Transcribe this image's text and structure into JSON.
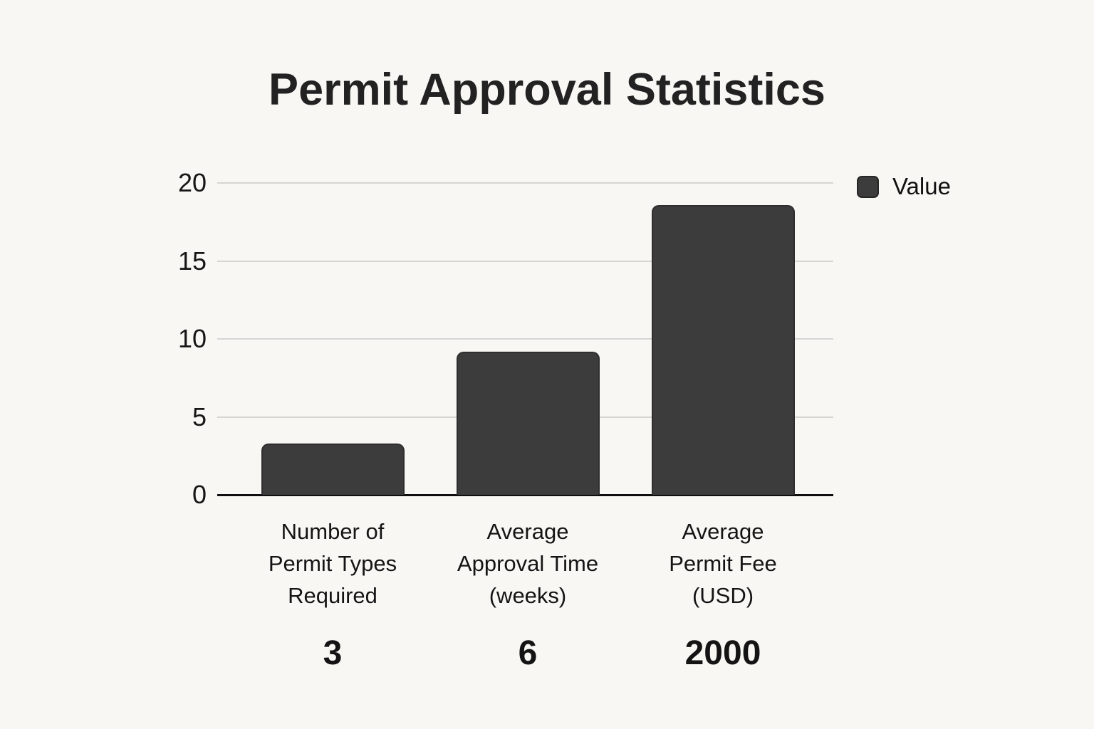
{
  "page": {
    "background_color": "#f8f7f4"
  },
  "chart_data": {
    "type": "bar",
    "title": "Permit Approval Statistics",
    "series_name": "Value",
    "legend_position": "top-right",
    "categories": [
      "Number of Permit Types Required",
      "Average Approval Time (weeks)",
      "Average Permit Fee (USD)"
    ],
    "category_lines": [
      [
        "Number of",
        "Permit Types",
        "Required"
      ],
      [
        "Average",
        "Approval Time",
        "(weeks)"
      ],
      [
        "Average",
        "Permit Fee",
        "(USD)"
      ]
    ],
    "values": [
      3,
      6,
      2000
    ],
    "value_labels": [
      "3",
      "6",
      "2000"
    ],
    "bar_heights_axis_units": [
      3.3,
      9.2,
      18.6
    ],
    "xlabel": "",
    "ylabel": "",
    "ylim": [
      0,
      20
    ],
    "yticks": [
      0,
      5,
      10,
      15,
      20
    ],
    "grid": true,
    "bar_color": "#3c3c3c",
    "axis_color": "#0f0f0f",
    "grid_color": "#d6d5d3",
    "text_color": "#141414"
  }
}
